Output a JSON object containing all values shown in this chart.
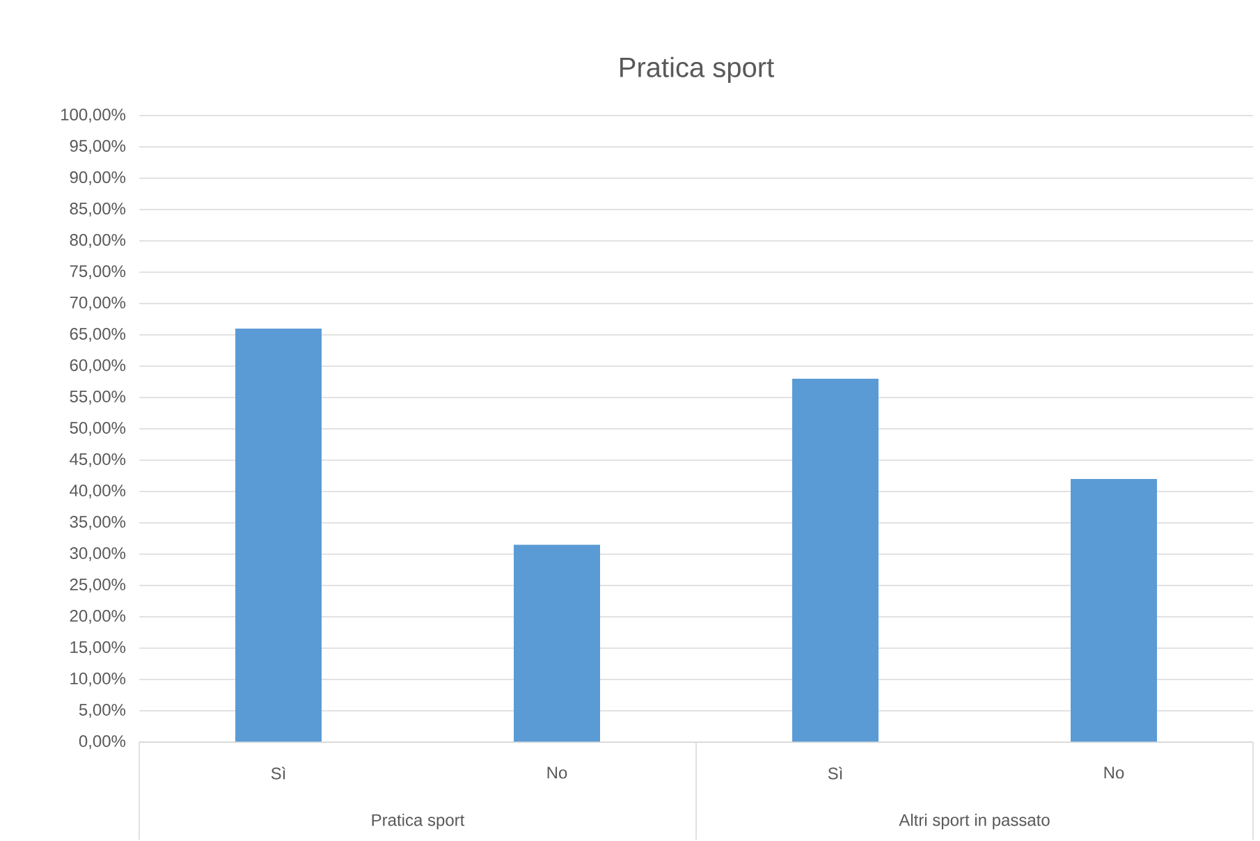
{
  "chart_data": {
    "type": "bar",
    "title": "Pratica sport",
    "categories": [
      "Sì",
      "No",
      "Sì",
      "No"
    ],
    "values": [
      66,
      31.5,
      58,
      42
    ],
    "color": "#5b9bd5",
    "ylim": [
      0,
      100
    ],
    "yticks": [
      {
        "value": 0,
        "label": "0,00%"
      },
      {
        "value": 5,
        "label": "5,00%"
      },
      {
        "value": 10,
        "label": "10,00%"
      },
      {
        "value": 15,
        "label": "15,00%"
      },
      {
        "value": 20,
        "label": "20,00%"
      },
      {
        "value": 25,
        "label": "25,00%"
      },
      {
        "value": 30,
        "label": "30,00%"
      },
      {
        "value": 35,
        "label": "35,00%"
      },
      {
        "value": 40,
        "label": "40,00%"
      },
      {
        "value": 45,
        "label": "45,00%"
      },
      {
        "value": 50,
        "label": "50,00%"
      },
      {
        "value": 55,
        "label": "55,00%"
      },
      {
        "value": 60,
        "label": "60,00%"
      },
      {
        "value": 65,
        "label": "65,00%"
      },
      {
        "value": 70,
        "label": "70,00%"
      },
      {
        "value": 75,
        "label": "75,00%"
      },
      {
        "value": 80,
        "label": "80,00%"
      },
      {
        "value": 85,
        "label": "85,00%"
      },
      {
        "value": 90,
        "label": "90,00%"
      },
      {
        "value": 95,
        "label": "95,00%"
      },
      {
        "value": 100,
        "label": "100,00%"
      }
    ],
    "grid": "y",
    "annotations": [
      "Pratica sport",
      "Altri sport in passato"
    ]
  }
}
